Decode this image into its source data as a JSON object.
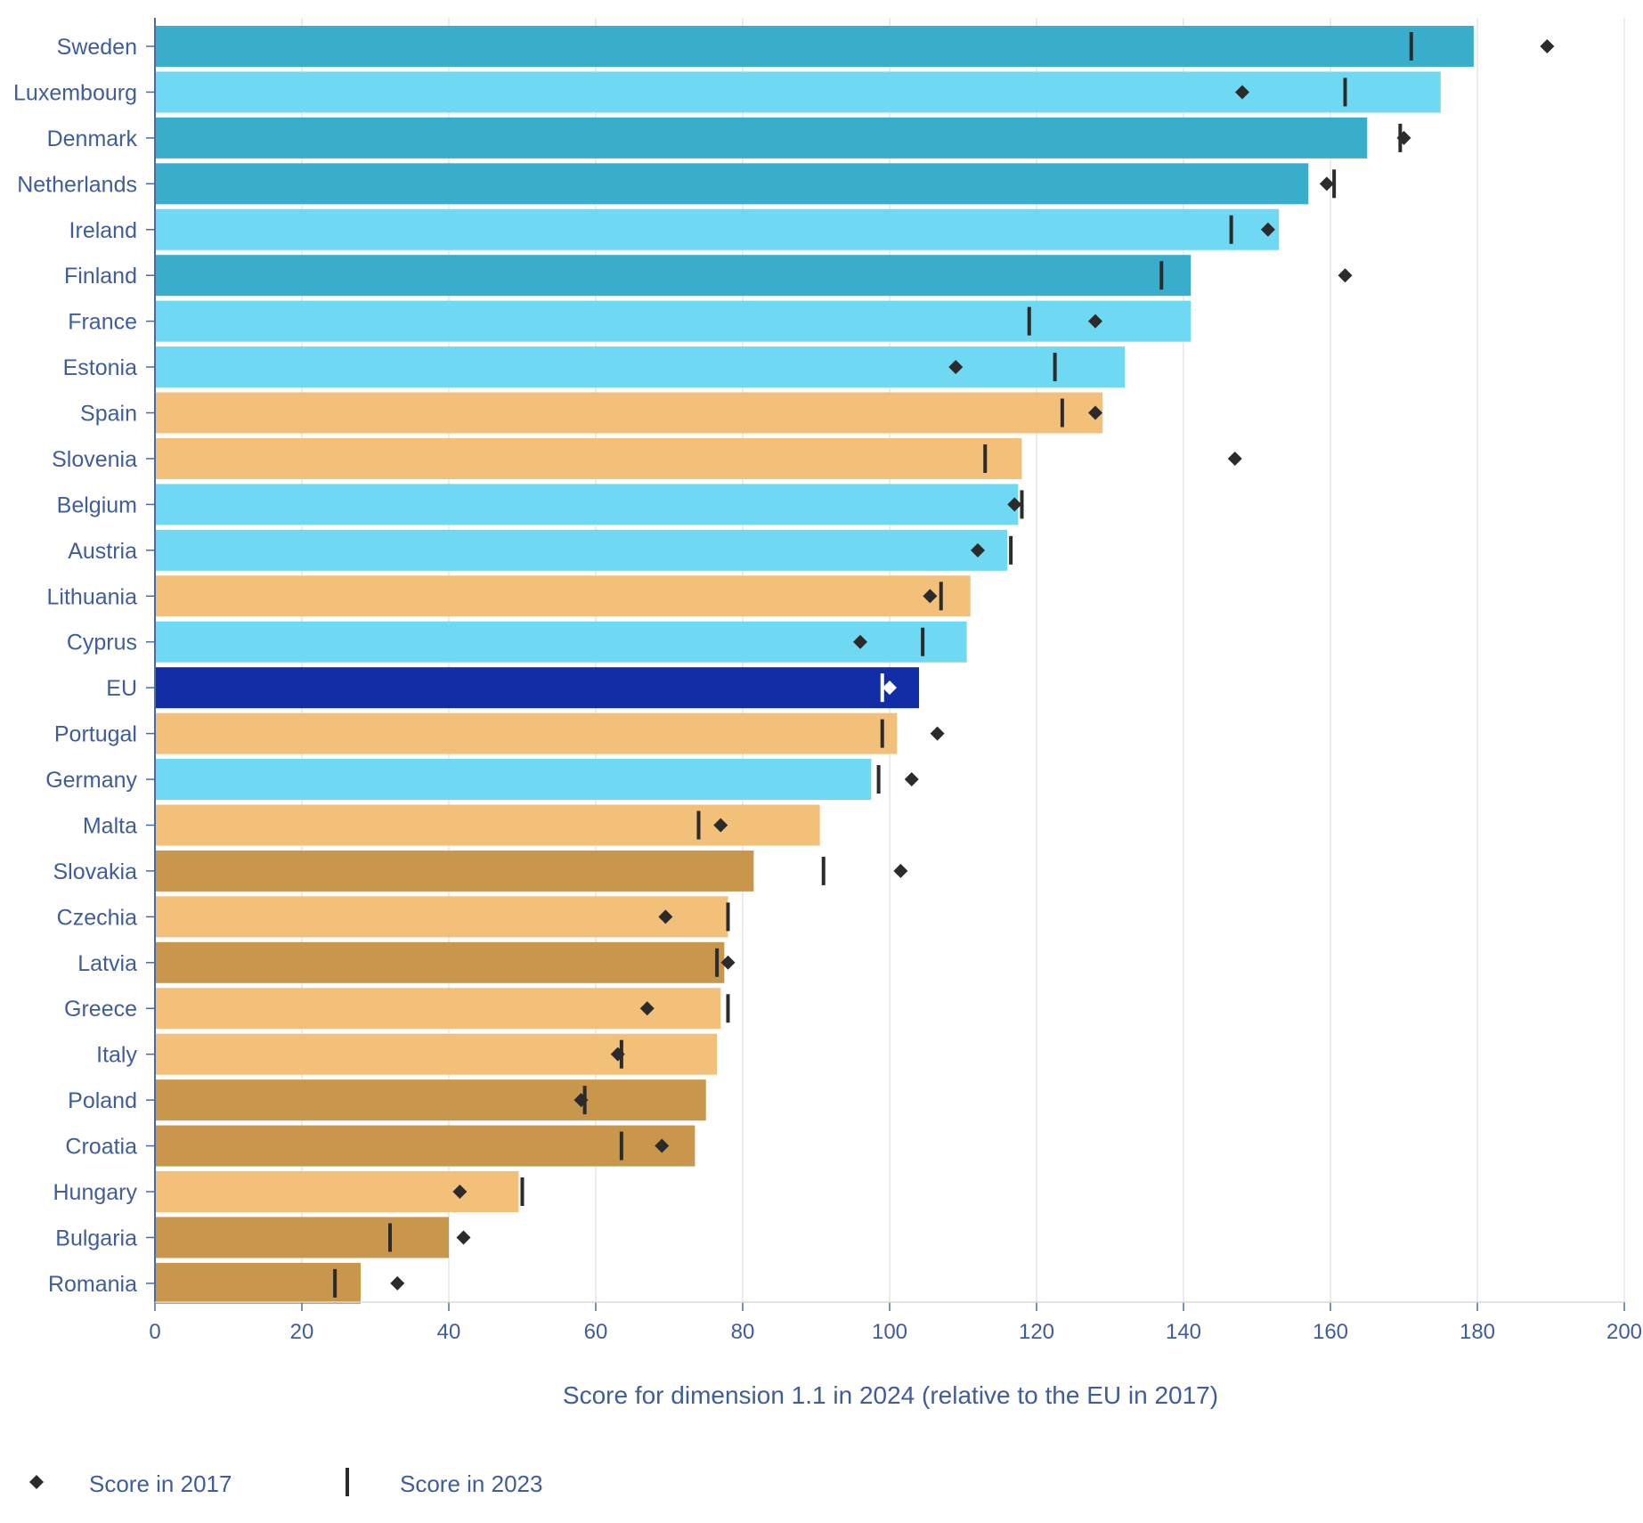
{
  "chart_data": {
    "type": "bar",
    "orientation": "horizontal",
    "xlabel": "Score for dimension 1.1 in 2024 (relative to the EU in 2017)",
    "ylabel": "",
    "xlim": [
      0,
      200
    ],
    "xticks": [
      0,
      20,
      40,
      60,
      80,
      100,
      120,
      140,
      160,
      180,
      200
    ],
    "grid": true,
    "legend_position": "bottom-left",
    "categories": [
      "Sweden",
      "Luxembourg",
      "Denmark",
      "Netherlands",
      "Ireland",
      "Finland",
      "France",
      "Estonia",
      "Spain",
      "Slovenia",
      "Belgium",
      "Austria",
      "Lithuania",
      "Cyprus",
      "EU",
      "Portugal",
      "Germany",
      "Malta",
      "Slovakia",
      "Czechia",
      "Latvia",
      "Greece",
      "Italy",
      "Poland",
      "Croatia",
      "Hungary",
      "Bulgaria",
      "Romania"
    ],
    "values": [
      179.5,
      175,
      165,
      157,
      153,
      141,
      141,
      132,
      129,
      118,
      117.5,
      116,
      111,
      110.5,
      104,
      101,
      97.5,
      90.5,
      81.5,
      78,
      77.5,
      77,
      76.5,
      75,
      73.5,
      49.5,
      40,
      28
    ],
    "bar_groups": [
      "dark_cyan",
      "light_cyan",
      "dark_cyan",
      "dark_cyan",
      "light_cyan",
      "dark_cyan",
      "light_cyan",
      "light_cyan",
      "light_orange",
      "light_orange",
      "light_cyan",
      "light_cyan",
      "light_orange",
      "light_cyan",
      "eu",
      "light_orange",
      "light_cyan",
      "light_orange",
      "dark_orange",
      "light_orange",
      "dark_orange",
      "light_orange",
      "light_orange",
      "dark_orange",
      "dark_orange",
      "light_orange",
      "dark_orange",
      "dark_orange"
    ],
    "group_colors": {
      "dark_cyan": "#38aecc",
      "light_cyan": "#6fd8f2",
      "light_orange": "#f2c079",
      "dark_orange": "#c8974c",
      "eu": "#122ea6"
    },
    "series": [
      {
        "name": "Score in 2017",
        "marker": "diamond",
        "values": [
          189.5,
          148,
          170,
          159.5,
          151.5,
          162,
          128,
          109,
          128,
          147,
          117,
          112,
          105.5,
          96,
          100,
          106.5,
          103,
          77,
          101.5,
          69.5,
          78,
          67,
          63,
          58,
          69,
          41.5,
          42,
          33
        ]
      },
      {
        "name": "Score in 2023",
        "marker": "vline",
        "values": [
          171,
          162,
          169.5,
          160.5,
          146.5,
          137,
          119,
          122.5,
          123.5,
          113,
          118,
          116.5,
          107,
          104.5,
          99,
          99,
          98.5,
          74,
          91,
          78,
          76.5,
          78,
          63.5,
          58.5,
          63.5,
          50,
          32,
          24.5
        ]
      }
    ]
  },
  "colors": {
    "axis_text": "#3f5d9a",
    "tick": "#4a6aa6",
    "grid": "#e6e6e6",
    "marker": "#2b2b2b",
    "marker_on_dark": "#ffffff"
  }
}
